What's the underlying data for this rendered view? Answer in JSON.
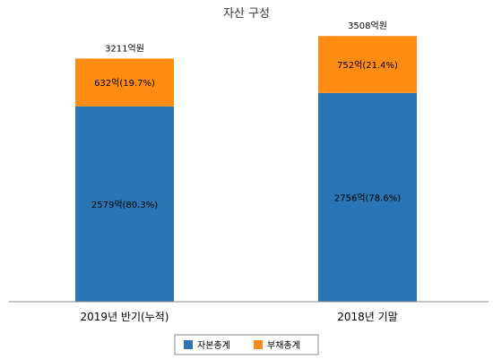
{
  "chart_data": {
    "type": "bar",
    "stacked": true,
    "title": "자산 구성",
    "categories": [
      "2019년 반기(누적)",
      "2018년 기말"
    ],
    "series": [
      {
        "name": "자본총계",
        "color": "#2a74b3",
        "values": [
          2579,
          2756
        ],
        "labels": [
          "2579억(80.3%)",
          "2756억(78.6%)"
        ]
      },
      {
        "name": "부채총계",
        "color": "#ff8c12",
        "values": [
          632,
          752
        ],
        "labels": [
          "632억(19.7%)",
          "752억(21.4%)"
        ]
      }
    ],
    "totals": [
      3211,
      3508
    ],
    "total_labels": [
      "3211억원",
      "3508억원"
    ],
    "ylim": [
      0,
      3700
    ],
    "grid": false,
    "legend": "bottom"
  }
}
